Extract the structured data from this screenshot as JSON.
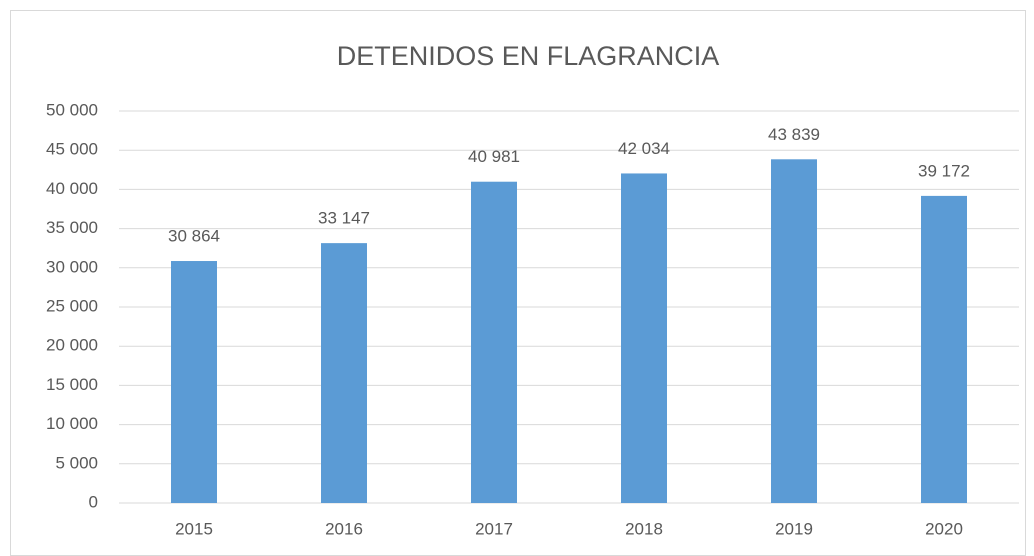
{
  "chart_data": {
    "type": "bar",
    "title": "DETENIDOS EN FLAGRANCIA",
    "categories": [
      "2015",
      "2016",
      "2017",
      "2018",
      "2019",
      "2020"
    ],
    "values": [
      30864,
      33147,
      40981,
      42034,
      43839,
      39172
    ],
    "value_labels": [
      "30 864",
      "33 147",
      "40 981",
      "42 034",
      "43 839",
      "39 172"
    ],
    "color": "#5b9bd5",
    "ylim": [
      0,
      50000
    ],
    "yticks": [
      0,
      {
        "value": 5000,
        "label": "5 000"
      },
      {
        "value": 10000,
        "label": "10 000"
      },
      {
        "value": 15000,
        "label": "15 000"
      },
      {
        "value": 20000,
        "label": "20 000"
      },
      {
        "value": 25000,
        "label": "25 000"
      },
      {
        "value": 30000,
        "label": "30 000"
      },
      {
        "value": 35000,
        "label": "35 000"
      },
      {
        "value": 40000,
        "label": "40 000"
      },
      {
        "value": 45000,
        "label": "45 000"
      },
      {
        "value": 50000,
        "label": "50 000"
      }
    ],
    "grid": true
  }
}
